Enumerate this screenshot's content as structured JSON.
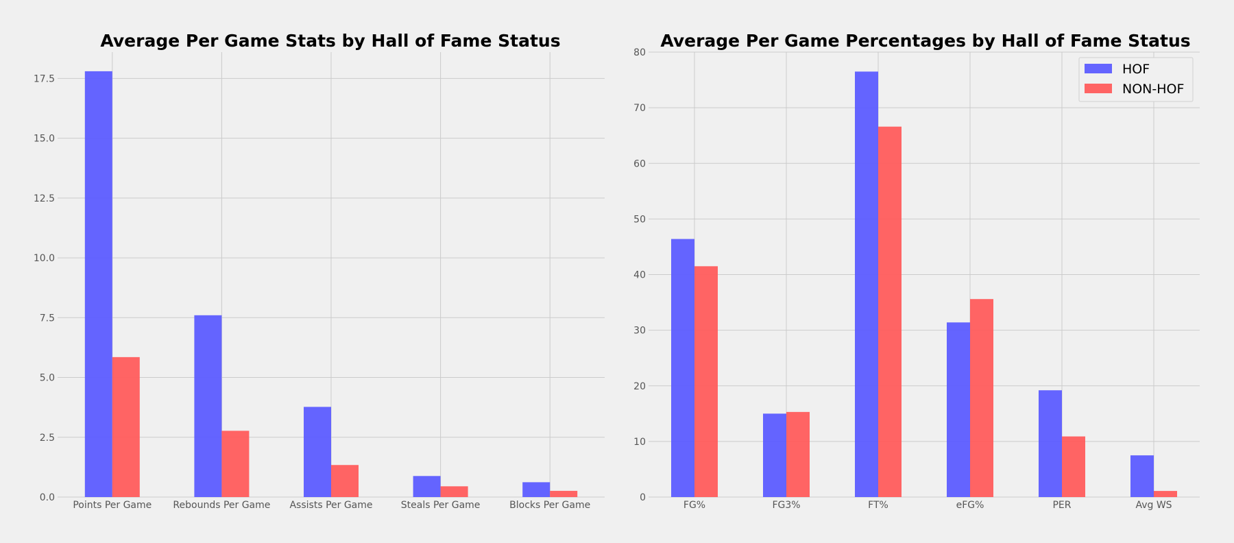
{
  "colors": {
    "hof": "#5c5cff",
    "nonhof": "#ff5c5c",
    "grid": "#cbcbcb",
    "background": "#f0f0f0",
    "tick_text": "#555555"
  },
  "chart_data": [
    {
      "type": "bar",
      "title": "Average Per Game Stats by Hall of Fame Status",
      "xlabel": "",
      "ylabel": "",
      "categories": [
        "Points Per Game",
        "Rebounds Per Game",
        "Assists Per Game",
        "Steals Per Game",
        "Blocks Per Game"
      ],
      "series": [
        {
          "name": "HOF",
          "values": [
            17.8,
            7.6,
            3.77,
            0.88,
            0.62
          ]
        },
        {
          "name": "NON-HOF",
          "values": [
            5.85,
            2.77,
            1.34,
            0.45,
            0.26
          ]
        }
      ],
      "ylim": [
        0,
        18.6
      ],
      "yticks": [
        0.0,
        2.5,
        5.0,
        7.5,
        10.0,
        12.5,
        15.0,
        17.5
      ],
      "ytick_labels": [
        "0.0",
        "2.5",
        "5.0",
        "7.5",
        "10.0",
        "12.5",
        "15.0",
        "17.5"
      ],
      "grid": true,
      "legend": false
    },
    {
      "type": "bar",
      "title": "Average Per Game Percentages by Hall of Fame Status",
      "xlabel": "",
      "ylabel": "",
      "categories": [
        "FG%",
        "FG3%",
        "FT%",
        "eFG%",
        "PER",
        "Avg WS"
      ],
      "series": [
        {
          "name": "HOF",
          "values": [
            46.4,
            15.0,
            76.5,
            31.4,
            19.2,
            7.5
          ]
        },
        {
          "name": "NON-HOF",
          "values": [
            41.5,
            15.3,
            66.6,
            35.6,
            10.9,
            1.1
          ]
        }
      ],
      "ylim": [
        0,
        80
      ],
      "yticks": [
        0,
        10,
        20,
        30,
        40,
        50,
        60,
        70,
        80
      ],
      "ytick_labels": [
        "0",
        "10",
        "20",
        "30",
        "40",
        "50",
        "60",
        "70",
        "80"
      ],
      "grid": true,
      "legend": true,
      "legend_placement": "top-right"
    }
  ]
}
